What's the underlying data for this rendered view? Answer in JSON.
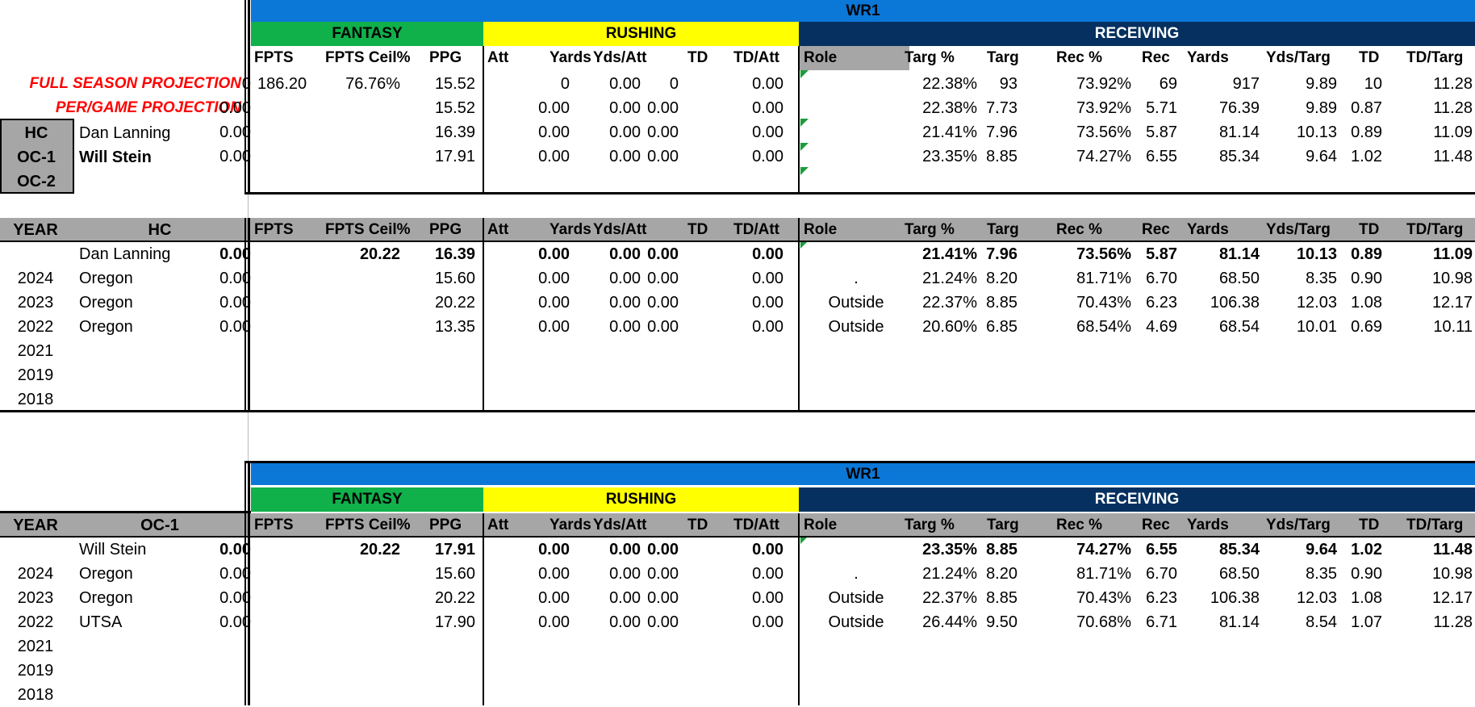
{
  "colors": {
    "wr_band": "#0b78d8",
    "fantasy": "#10b04a",
    "rushing": "#ffff00",
    "receiving": "#05305f",
    "header_gray": "#a6a6a6",
    "projection_red": "#ff0000",
    "comment_marker": "#1e9c3c"
  },
  "top": {
    "position": "WR1",
    "group_fantasy": "FANTASY",
    "group_rushing": "RUSHING",
    "group_receiving": "RECEIVING",
    "columns": [
      "FPTS",
      "FPTS Ceil%",
      "PPG",
      "Att",
      "Yards",
      "Yds/Att",
      "TD",
      "TD/Att",
      "Role",
      "Targ %",
      "Targ",
      "Rec %",
      "Rec",
      "Yards",
      "Yds/Targ",
      "TD",
      "TD/Targ"
    ],
    "full_season_label": "FULL SEASON PROJECTION",
    "per_game_label": "PER/GAME PROJECTION",
    "staff": [
      {
        "role": "HC",
        "name": "Dan Lanning"
      },
      {
        "role": "OC-1",
        "name": "Will Stein"
      },
      {
        "role": "OC-2",
        "name": ""
      }
    ],
    "rows": [
      [
        "186.20",
        "76.76%",
        "15.52",
        "0",
        "0",
        "0.00",
        "0",
        "0.00",
        "",
        "22.38%",
        "93",
        "73.92%",
        "69",
        "917",
        "9.89",
        "10",
        "11.28"
      ],
      [
        "",
        "",
        "15.52",
        "0.00",
        "0.00",
        "0.00",
        "0.00",
        "0.00",
        "",
        "22.38%",
        "7.73",
        "73.92%",
        "5.71",
        "76.39",
        "9.89",
        "0.87",
        "11.28"
      ],
      [
        "",
        "",
        "16.39",
        "0.00",
        "0.00",
        "0.00",
        "0.00",
        "0.00",
        "",
        "21.41%",
        "7.96",
        "73.56%",
        "5.87",
        "81.14",
        "10.13",
        "0.89",
        "11.09"
      ],
      [
        "",
        "",
        "17.91",
        "0.00",
        "0.00",
        "0.00",
        "0.00",
        "0.00",
        "",
        "23.35%",
        "8.85",
        "74.27%",
        "6.55",
        "85.34",
        "9.64",
        "1.02",
        "11.48"
      ]
    ]
  },
  "hc_section": {
    "year_header": "YEAR",
    "name_header": "HC",
    "columns": [
      "FPTS",
      "FPTS Ceil%",
      "PPG",
      "Att",
      "Yards",
      "Yds/Att",
      "TD",
      "TD/Att",
      "Role",
      "Targ %",
      "Targ",
      "Rec %",
      "Rec",
      "Yards",
      "Yds/Targ",
      "TD",
      "TD/Targ"
    ],
    "rows": [
      {
        "year": "",
        "team": "Dan Lanning",
        "vals": [
          "",
          "20.22",
          "16.39",
          "0.00",
          "0.00",
          "0.00",
          "0.00",
          "0.00",
          "",
          "21.41%",
          "7.96",
          "73.56%",
          "5.87",
          "81.14",
          "10.13",
          "0.89",
          "11.09"
        ]
      },
      {
        "year": "2024",
        "team": "Oregon",
        "vals": [
          "",
          "",
          "15.60",
          "0.00",
          "0.00",
          "0.00",
          "0.00",
          "0.00",
          ".",
          "21.24%",
          "8.20",
          "81.71%",
          "6.70",
          "68.50",
          "8.35",
          "0.90",
          "10.98"
        ]
      },
      {
        "year": "2023",
        "team": "Oregon",
        "vals": [
          "",
          "",
          "20.22",
          "0.00",
          "0.00",
          "0.00",
          "0.00",
          "0.00",
          "Outside",
          "22.37%",
          "8.85",
          "70.43%",
          "6.23",
          "106.38",
          "12.03",
          "1.08",
          "12.17"
        ]
      },
      {
        "year": "2022",
        "team": "Oregon",
        "vals": [
          "",
          "",
          "13.35",
          "0.00",
          "0.00",
          "0.00",
          "0.00",
          "0.00",
          "Outside",
          "20.60%",
          "6.85",
          "68.54%",
          "4.69",
          "68.54",
          "10.01",
          "0.69",
          "10.11"
        ]
      },
      {
        "year": "2021",
        "team": "",
        "vals": [
          "",
          "",
          "",
          "",
          "",
          "",
          "",
          "",
          "",
          "",
          "",
          "",
          "",
          "",
          "",
          "",
          ""
        ]
      },
      {
        "year": "2019",
        "team": "",
        "vals": [
          "",
          "",
          "",
          "",
          "",
          "",
          "",
          "",
          "",
          "",
          "",
          "",
          "",
          "",
          "",
          "",
          ""
        ]
      },
      {
        "year": "2018",
        "team": "",
        "vals": [
          "",
          "",
          "",
          "",
          "",
          "",
          "",
          "",
          "",
          "",
          "",
          "",
          "",
          "",
          "",
          "",
          ""
        ]
      }
    ]
  },
  "oc_section": {
    "position": "WR1",
    "group_fantasy": "FANTASY",
    "group_rushing": "RUSHING",
    "group_receiving": "RECEIVING",
    "year_header": "YEAR",
    "name_header": "OC-1",
    "columns": [
      "FPTS",
      "FPTS Ceil%",
      "PPG",
      "Att",
      "Yards",
      "Yds/Att",
      "TD",
      "TD/Att",
      "Role",
      "Targ %",
      "Targ",
      "Rec %",
      "Rec",
      "Yards",
      "Yds/Targ",
      "TD",
      "TD/Targ"
    ],
    "rows": [
      {
        "year": "",
        "team": "Will Stein",
        "vals": [
          "",
          "20.22",
          "17.91",
          "0.00",
          "0.00",
          "0.00",
          "0.00",
          "0.00",
          "",
          "23.35%",
          "8.85",
          "74.27%",
          "6.55",
          "85.34",
          "9.64",
          "1.02",
          "11.48"
        ]
      },
      {
        "year": "2024",
        "team": "Oregon",
        "vals": [
          "",
          "",
          "15.60",
          "0.00",
          "0.00",
          "0.00",
          "0.00",
          "0.00",
          ".",
          "21.24%",
          "8.20",
          "81.71%",
          "6.70",
          "68.50",
          "8.35",
          "0.90",
          "10.98"
        ]
      },
      {
        "year": "2023",
        "team": "Oregon",
        "vals": [
          "",
          "",
          "20.22",
          "0.00",
          "0.00",
          "0.00",
          "0.00",
          "0.00",
          "Outside",
          "22.37%",
          "8.85",
          "70.43%",
          "6.23",
          "106.38",
          "12.03",
          "1.08",
          "12.17"
        ]
      },
      {
        "year": "2022",
        "team": "UTSA",
        "vals": [
          "",
          "",
          "17.90",
          "0.00",
          "0.00",
          "0.00",
          "0.00",
          "0.00",
          "Outside",
          "26.44%",
          "9.50",
          "70.68%",
          "6.71",
          "81.14",
          "8.54",
          "1.07",
          "11.28"
        ]
      },
      {
        "year": "2021",
        "team": "",
        "vals": [
          "",
          "",
          "",
          "",
          "",
          "",
          "",
          "",
          "",
          "",
          "",
          "",
          "",
          "",
          "",
          "",
          ""
        ]
      },
      {
        "year": "2019",
        "team": "",
        "vals": [
          "",
          "",
          "",
          "",
          "",
          "",
          "",
          "",
          "",
          "",
          "",
          "",
          "",
          "",
          "",
          "",
          ""
        ]
      },
      {
        "year": "2018",
        "team": "",
        "vals": [
          "",
          "",
          "",
          "",
          "",
          "",
          "",
          "",
          "",
          "",
          "",
          "",
          "",
          "",
          "",
          "",
          ""
        ]
      }
    ]
  }
}
